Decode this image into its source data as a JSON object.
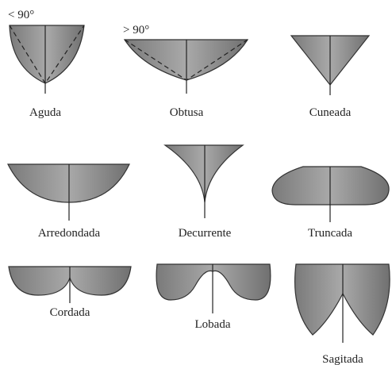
{
  "annotations": {
    "acute_angle": "< 90°",
    "obtuse_angle": "> 90°"
  },
  "shapes": [
    {
      "label": "Aguda"
    },
    {
      "label": "Obtusa"
    },
    {
      "label": "Cuneada"
    },
    {
      "label": "Arredondada"
    },
    {
      "label": "Decurrente"
    },
    {
      "label": "Truncada"
    },
    {
      "label": "Cordada"
    },
    {
      "label": "Lobada"
    },
    {
      "label": "Sagitada"
    }
  ]
}
